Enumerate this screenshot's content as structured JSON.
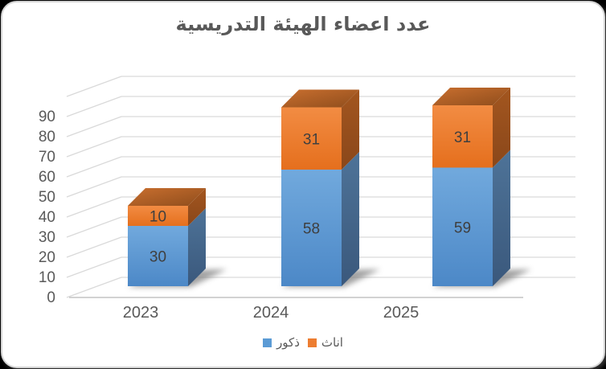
{
  "chart_data": {
    "type": "bar",
    "variant": "3d-stacked-column",
    "title": "عدد اعضاء الهيئة التدريسية",
    "categories": [
      "2023",
      "2024",
      "2025"
    ],
    "series": [
      {
        "name": "ذكور",
        "color": "#5B9BD5",
        "values": [
          30,
          58,
          59
        ]
      },
      {
        "name": "اناث",
        "color": "#ED7D31",
        "values": [
          10,
          31,
          31
        ]
      }
    ],
    "data_labels_shown": true,
    "y_axis": {
      "tick_labels": [
        "0",
        "10",
        "20",
        "30",
        "40",
        "50",
        "60",
        "70",
        "80",
        "90"
      ],
      "max": 100,
      "step": 10
    },
    "xlabel": "",
    "ylabel": "",
    "grid": true,
    "legend_position": "bottom"
  },
  "colors": {
    "title": "#595959",
    "axis_labels": "#595959",
    "data_labels": "#3F3F3F",
    "gridline": "#D9D9D9",
    "axis_line": "#C4C4C4",
    "male_front_top": "#71A9DD",
    "male_front_bottom": "#4C88C7",
    "male_side_top": "#4E7398",
    "male_side_bottom": "#3A587C",
    "female_front_top": "#F28C43",
    "female_front_bottom": "#E56F1D",
    "female_side_top": "#A3561F",
    "female_side_bottom": "#8A471A",
    "female_top_light": "#C96F2F",
    "female_top_dark": "#8F4D1C",
    "chart_background": "#FFFFFF",
    "frame_border": "#D4D4D4"
  }
}
